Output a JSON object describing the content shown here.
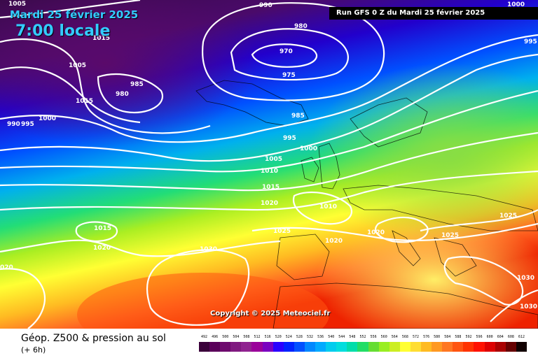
{
  "header": {
    "date": "Mardi 25 février 2025",
    "time": "7:00 locale",
    "run": "Run GFS 0 Z du Mardi 25 février 2025",
    "copyright": "Copyright © 2025 Meteociel.fr"
  },
  "footer": {
    "title": "Géop. Z500 & pression au sol",
    "subtitle": "(+ 6h)"
  },
  "legend": {
    "values": [
      "492",
      "496",
      "500",
      "504",
      "508",
      "512",
      "516",
      "520",
      "524",
      "528",
      "532",
      "536",
      "540",
      "544",
      "548",
      "552",
      "556",
      "560",
      "564",
      "568",
      "572",
      "576",
      "580",
      "584",
      "588",
      "592",
      "596",
      "600",
      "604",
      "608",
      "612"
    ],
    "colors": [
      "#3a003a",
      "#5a005a",
      "#6e0a6e",
      "#801a80",
      "#902290",
      "#9a009a",
      "#7a00c0",
      "#2a00ff",
      "#0022ff",
      "#0050ff",
      "#0088ff",
      "#00aaff",
      "#00ccee",
      "#00dddd",
      "#00ddaa",
      "#22dd66",
      "#66dd33",
      "#99ee22",
      "#ccee22",
      "#ffff33",
      "#ffdd33",
      "#ffbb22",
      "#ff9922",
      "#ff7722",
      "#ff5511",
      "#ff3300",
      "#ff1100",
      "#dd0000",
      "#aa0000",
      "#660000",
      "#110000"
    ]
  },
  "isobars": [
    {
      "label": "1005",
      "label2": "",
      "label3": ""
    },
    {
      "label": "1015",
      "label2": "",
      "label3": ""
    },
    {
      "label": "1005",
      "label2": "",
      "label3": ""
    },
    {
      "label": "985",
      "label2": "",
      "label3": ""
    },
    {
      "label": "980",
      "label2": "",
      "label3": ""
    },
    {
      "label": "1015",
      "label2": "",
      "label3": ""
    },
    {
      "label": "1000",
      "label2": "",
      "label3": ""
    },
    {
      "label": "990",
      "label2": "",
      "label3": ""
    },
    {
      "label": "995",
      "label2": "",
      "label3": ""
    },
    {
      "label": "990",
      "label2": "",
      "label3": ""
    },
    {
      "label": "980",
      "label2": "",
      "label3": ""
    },
    {
      "label": "970",
      "label2": "",
      "label3": ""
    },
    {
      "label": "975",
      "label2": "",
      "label3": ""
    },
    {
      "label": "985",
      "label2": "",
      "label3": ""
    },
    {
      "label": "995",
      "label2": "",
      "label3": ""
    },
    {
      "label": "1000",
      "label2": "",
      "label3": ""
    },
    {
      "label": "1005",
      "label2": "",
      "label3": ""
    },
    {
      "label": "1010",
      "label2": "",
      "label3": ""
    },
    {
      "label": "1015",
      "label2": "",
      "label3": ""
    },
    {
      "label": "1020",
      "label2": "",
      "label3": ""
    },
    {
      "label": "1010",
      "label2": "",
      "label3": ""
    },
    {
      "label": "1025",
      "label2": "",
      "label3": ""
    },
    {
      "label": "1020",
      "label2": "",
      "label3": ""
    },
    {
      "label": "1020",
      "label2": "",
      "label3": ""
    },
    {
      "label": "1015",
      "label2": "",
      "label3": ""
    },
    {
      "label": "1020",
      "label2": "",
      "label3": ""
    },
    {
      "label": "1030",
      "label2": "",
      "label3": ""
    },
    {
      "label": "1025",
      "label2": "",
      "label3": ""
    },
    {
      "label": "1025",
      "label2": "",
      "label3": ""
    },
    {
      "label": "1030",
      "label2": "",
      "label3": ""
    },
    {
      "label": "1030",
      "label2": "",
      "label3": ""
    },
    {
      "label": "1000",
      "label2": "",
      "label3": ""
    },
    {
      "label": "995",
      "label2": "",
      "label3": ""
    },
    {
      "label": "020",
      "label2": "",
      "label3": ""
    }
  ]
}
